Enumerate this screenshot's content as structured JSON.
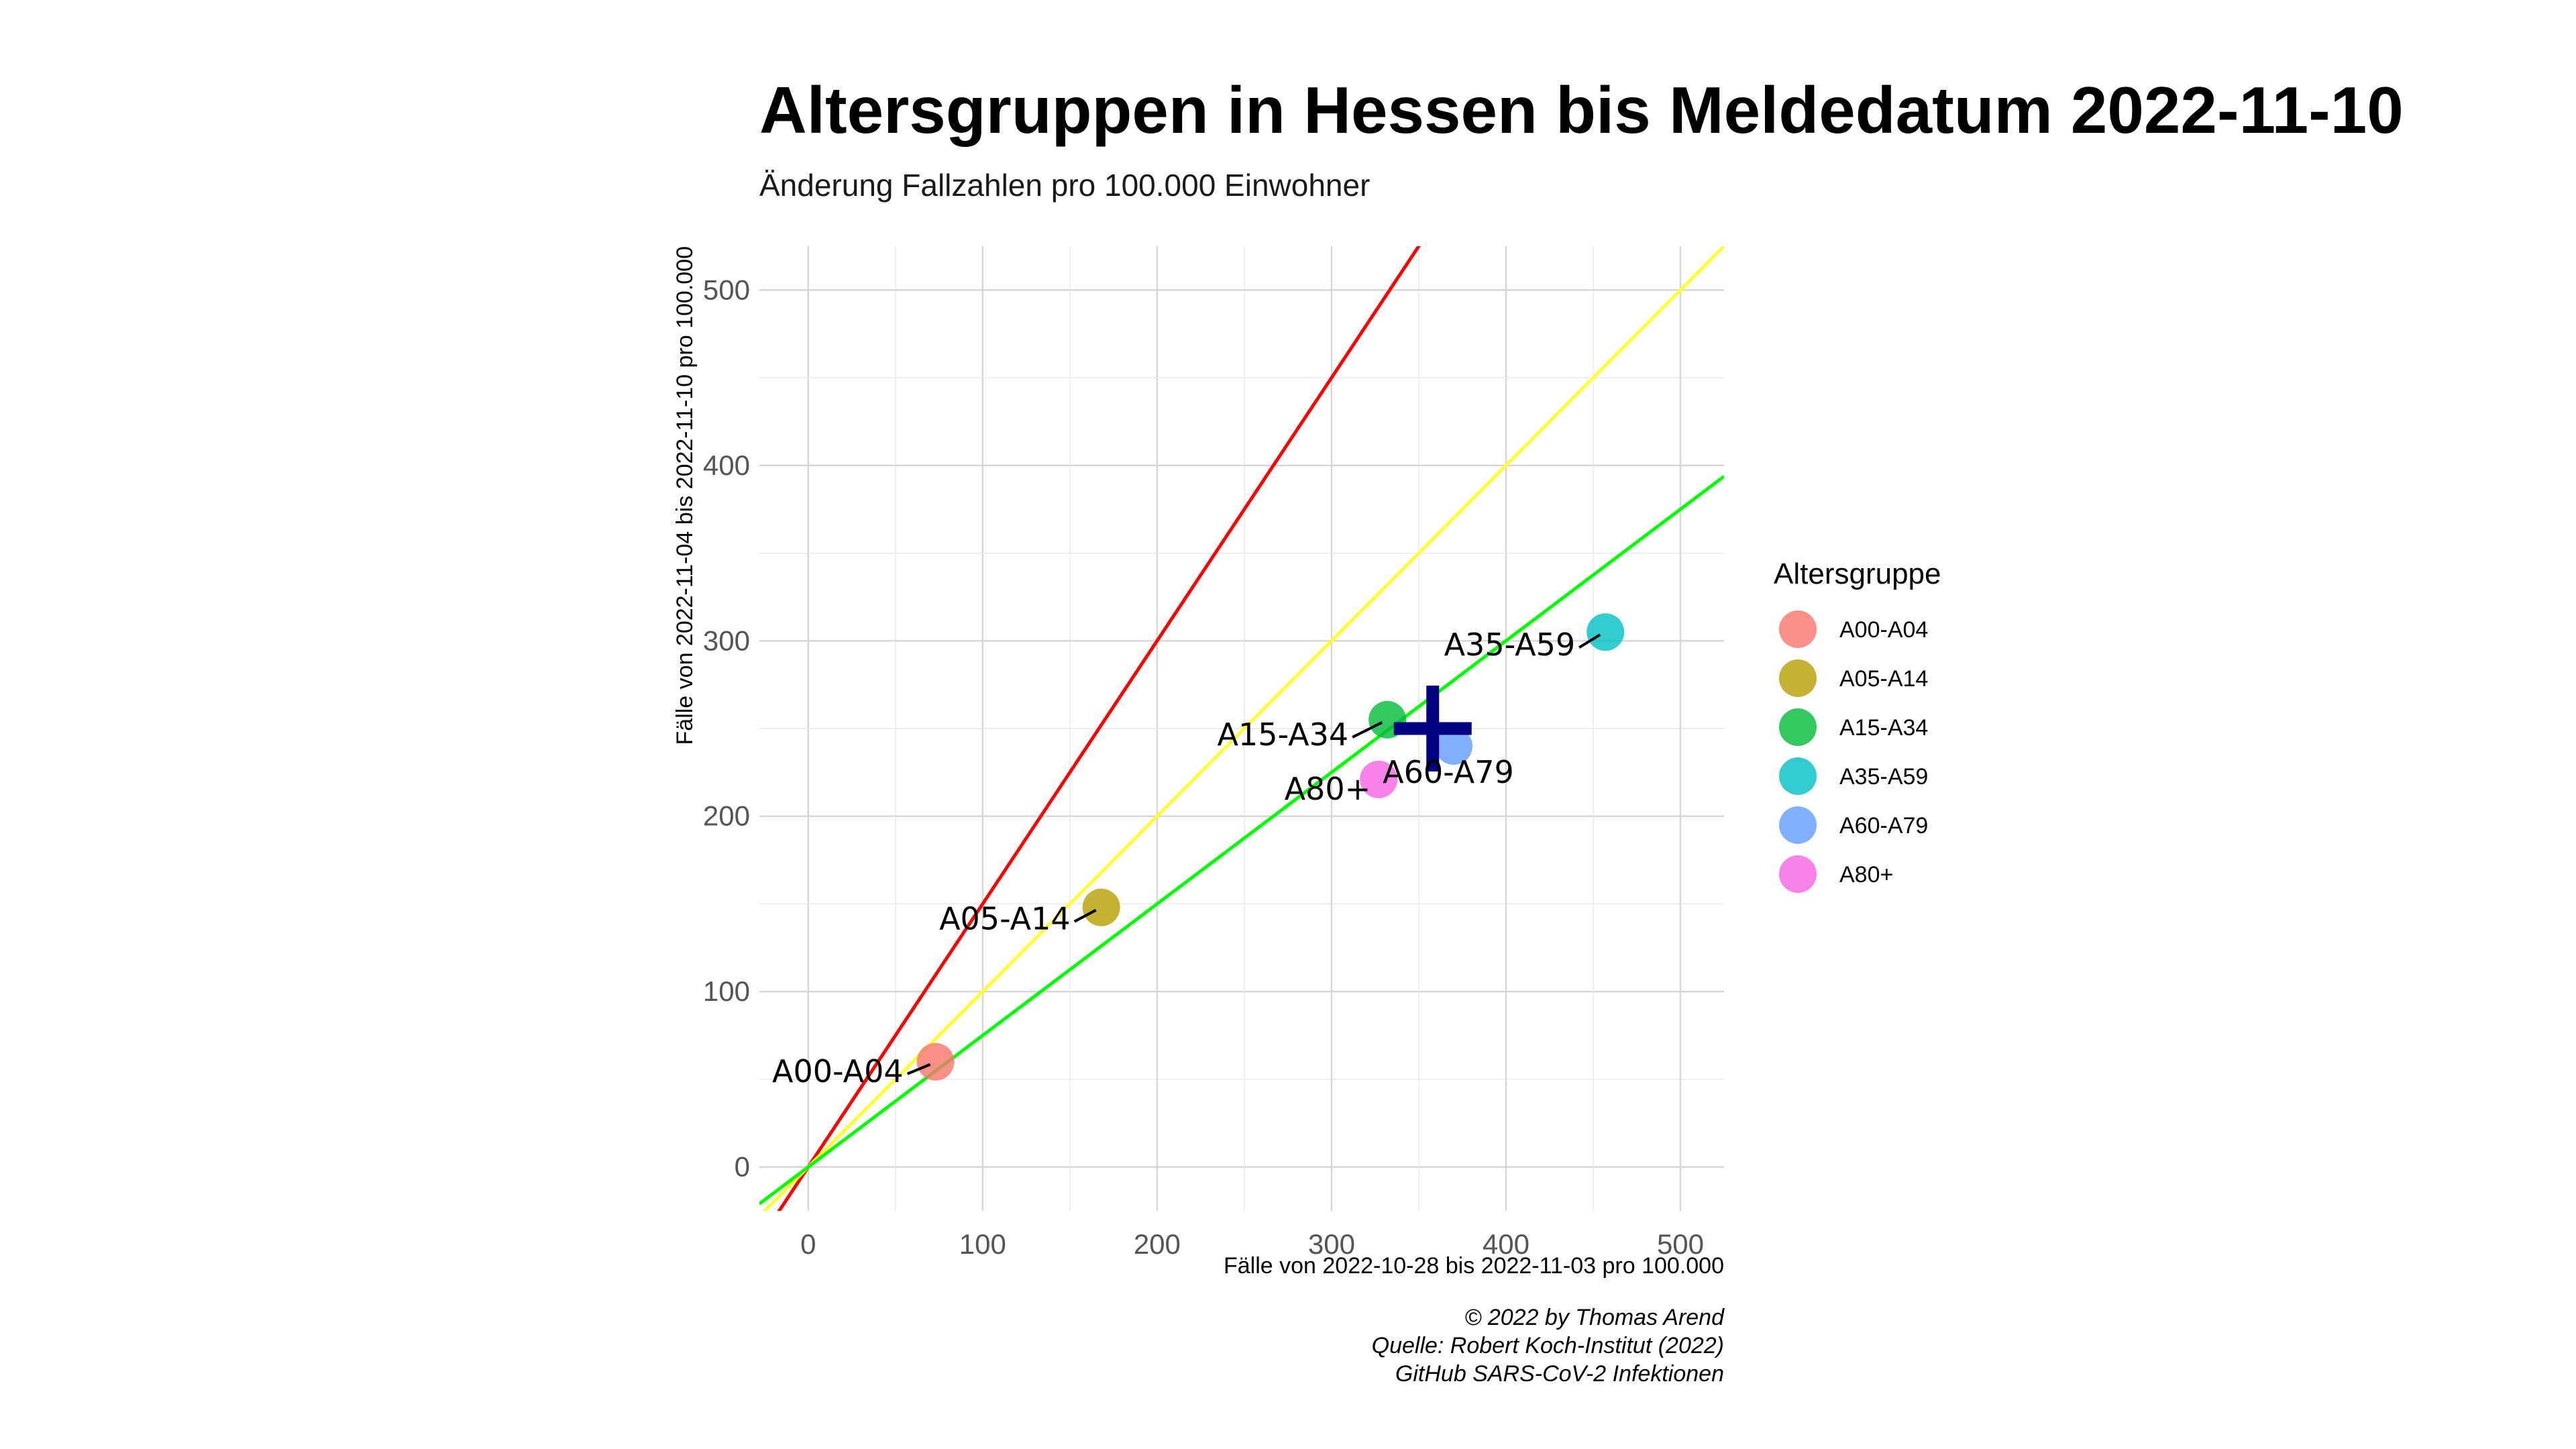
{
  "chart_data": {
    "type": "scatter",
    "title": "Altersgruppen in Hessen bis Meldedatum 2022-11-10",
    "subtitle": "Änderung Fallzahlen pro 100.000 Einwohner",
    "xlabel": "Fälle von 2022-10-28 bis 2022-11-03 pro 100.000",
    "ylabel": "Fälle von 2022-11-04 bis 2022-11-10 pro 100.000",
    "xlim": [
      -28,
      525
    ],
    "ylim": [
      -25,
      525
    ],
    "x_ticks": [
      0,
      100,
      200,
      300,
      400,
      500
    ],
    "y_ticks": [
      0,
      100,
      200,
      300,
      400,
      500
    ],
    "grid": true,
    "legend": {
      "title": "Altersgruppe",
      "position": "right"
    },
    "points": [
      {
        "group": "A00-A04",
        "x": 73,
        "y": 60,
        "color": "#F8766D"
      },
      {
        "group": "A05-A14",
        "x": 168,
        "y": 148,
        "color": "#B79F00"
      },
      {
        "group": "A15-A34",
        "x": 332,
        "y": 255,
        "color": "#00BA38"
      },
      {
        "group": "A35-A59",
        "x": 457,
        "y": 305,
        "color": "#00BFC4"
      },
      {
        "group": "A60-A79",
        "x": 370,
        "y": 240,
        "color": "#619CFF"
      },
      {
        "group": "A80+",
        "x": 327,
        "y": 221,
        "color": "#F564E3"
      }
    ],
    "mean_marker": {
      "x": 358,
      "y": 250,
      "color": "#000080",
      "shape": "plus"
    },
    "reference_lines": [
      {
        "slope": 1.5,
        "color": "#FF0000"
      },
      {
        "slope": 1.0,
        "color": "#FFFF33"
      },
      {
        "slope": 0.75,
        "color": "#00FF00"
      }
    ]
  },
  "caption": {
    "lines": [
      "© 2022 by Thomas Arend",
      "Quelle: Robert Koch-Institut (2022)",
      "GitHub SARS-CoV-2 Infektionen"
    ]
  }
}
